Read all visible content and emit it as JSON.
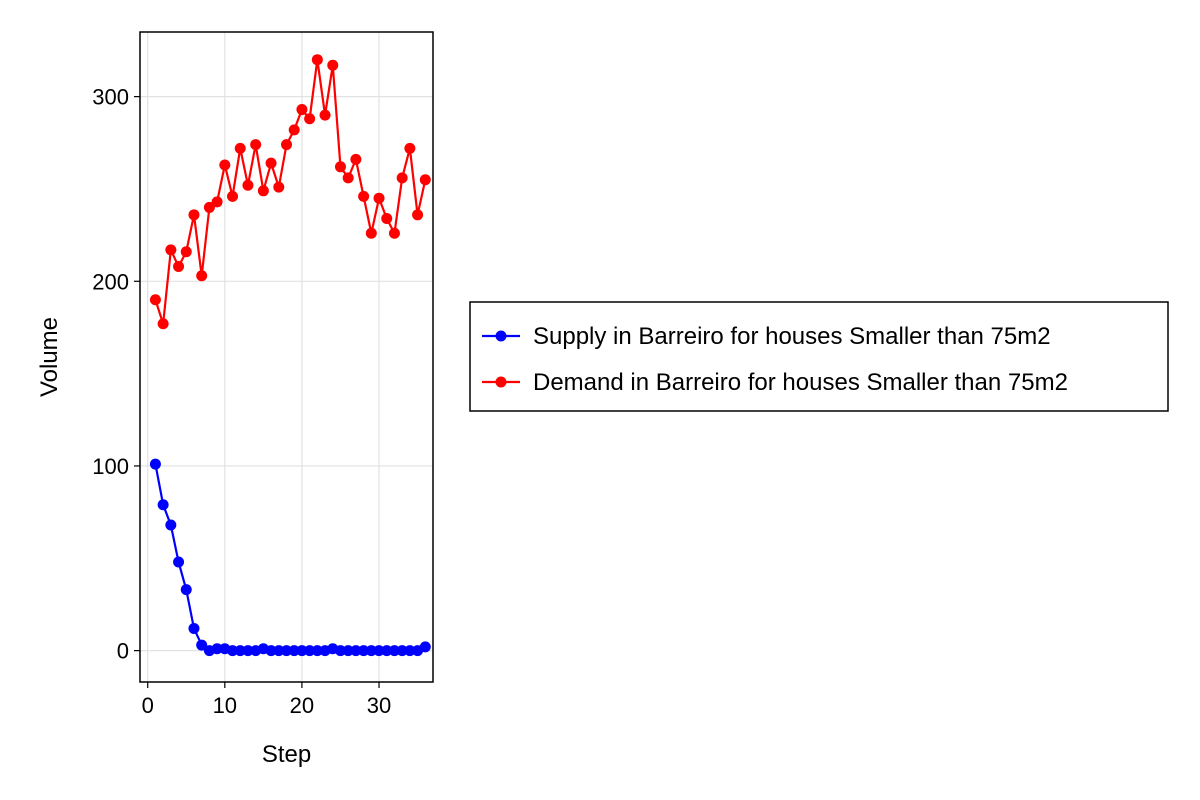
{
  "chart_data": {
    "type": "line",
    "title": "",
    "xlabel": "Step",
    "ylabel": "Volume",
    "xlim": [
      -1,
      37
    ],
    "ylim": [
      -17,
      335
    ],
    "xticks": [
      0,
      10,
      20,
      30
    ],
    "yticks": [
      0,
      100,
      200,
      300
    ],
    "grid": true,
    "legend_position": "right",
    "series": [
      {
        "name": "Supply in Barreiro for houses Smaller than 75m2",
        "color": "#0000ff",
        "marker": "circle",
        "x": [
          1,
          2,
          3,
          4,
          5,
          6,
          7,
          8,
          9,
          10,
          11,
          12,
          13,
          14,
          15,
          16,
          17,
          18,
          19,
          20,
          21,
          22,
          23,
          24,
          25,
          26,
          27,
          28,
          29,
          30,
          31,
          32,
          33,
          34,
          35,
          36
        ],
        "y": [
          101,
          79,
          68,
          48,
          33,
          12,
          3,
          0,
          1,
          1,
          0,
          0,
          0,
          0,
          1,
          0,
          0,
          0,
          0,
          0,
          0,
          0,
          0,
          1,
          0,
          0,
          0,
          0,
          0,
          0,
          0,
          0,
          0,
          0,
          0,
          2
        ]
      },
      {
        "name": "Demand in Barreiro for houses Smaller than 75m2",
        "color": "#ff0000",
        "marker": "circle",
        "x": [
          1,
          2,
          3,
          4,
          5,
          6,
          7,
          8,
          9,
          10,
          11,
          12,
          13,
          14,
          15,
          16,
          17,
          18,
          19,
          20,
          21,
          22,
          23,
          24,
          25,
          26,
          27,
          28,
          29,
          30,
          31,
          32,
          33,
          34,
          35,
          36
        ],
        "y": [
          190,
          177,
          217,
          208,
          216,
          236,
          203,
          240,
          243,
          263,
          246,
          272,
          252,
          274,
          249,
          264,
          251,
          274,
          282,
          293,
          288,
          320,
          290,
          317,
          262,
          256,
          266,
          246,
          226,
          245,
          234,
          226,
          256,
          272,
          236,
          255
        ]
      }
    ]
  }
}
